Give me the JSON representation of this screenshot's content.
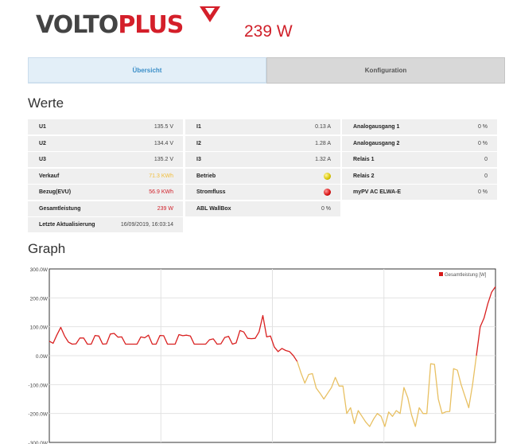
{
  "header": {
    "logo": {
      "part1": "VOLTO",
      "part2": "PLUS"
    },
    "power": "239 W"
  },
  "tabs": [
    {
      "label": "Übersicht",
      "active": true
    },
    {
      "label": "Konfiguration",
      "active": false
    }
  ],
  "werte": {
    "heading": "Werte",
    "col1": [
      {
        "label": "U1",
        "value": "135.5 V"
      },
      {
        "label": "U2",
        "value": "134.4 V"
      },
      {
        "label": "U3",
        "value": "135.2 V"
      },
      {
        "label": "Verkauf",
        "value": "71.3 KWh",
        "color": "#f1bd3a"
      },
      {
        "label": "Bezug(EVU)",
        "value": "56.9 KWh",
        "color": "#d0202a"
      },
      {
        "label": "Gesamtleistung",
        "value": "239 W",
        "color": "#d0202a"
      },
      {
        "label": "Letzte Aktualisierung",
        "value": "16/09/2019, 16:03:14"
      }
    ],
    "col2": [
      {
        "label": "I1",
        "value": "0.13 A"
      },
      {
        "label": "I2",
        "value": "1.28 A"
      },
      {
        "label": "I3",
        "value": "1.32 A"
      },
      {
        "label": "Betrieb",
        "indicator": "yellow"
      },
      {
        "label": "Stromfluss",
        "indicator": "red"
      },
      {
        "label": "ABL WallBox",
        "value": "0 %"
      }
    ],
    "col3": [
      {
        "label": "Analogausgang 1",
        "value": "0 %"
      },
      {
        "label": "Analogausgang 2",
        "value": "0 %"
      },
      {
        "label": "Relais 1",
        "value": "0"
      },
      {
        "label": "Relais 2",
        "value": "0"
      },
      {
        "label": "myPV AC ELWA-E",
        "value": "0 %"
      }
    ]
  },
  "graph": {
    "heading": "Graph"
  },
  "chart_data": {
    "type": "line",
    "title": "",
    "xlabel": "",
    "ylabel": "",
    "ylim": [
      -300,
      300
    ],
    "yticks": [
      "300.0W",
      "200.0W",
      "100.0W",
      "0.0W",
      "-100.0W",
      "-200.0W",
      "-300.0W"
    ],
    "grid": true,
    "legend": {
      "position": "top-right",
      "label": "Gesamtleistung [W]"
    },
    "colors": {
      "positive": "#d92020",
      "negative": "#e8c062"
    },
    "series": [
      {
        "name": "Gesamtleistung [W]",
        "values": [
          50,
          43,
          72,
          98,
          68,
          47,
          40,
          41,
          61,
          61,
          40,
          40,
          70,
          68,
          40,
          41,
          75,
          77,
          64,
          65,
          40,
          40,
          40,
          40,
          65,
          62,
          71,
          40,
          40,
          70,
          69,
          40,
          40,
          40,
          73,
          69,
          71,
          68,
          40,
          40,
          40,
          40,
          55,
          58,
          40,
          41,
          63,
          67,
          40,
          44,
          87,
          82,
          60,
          59,
          60,
          82,
          139,
          65,
          68,
          30,
          14,
          25,
          18,
          14,
          0,
          -20,
          -60,
          -95,
          -65,
          -62,
          -112,
          -130,
          -150,
          -130,
          -110,
          -75,
          -105,
          -105,
          -200,
          -180,
          -235,
          -190,
          -210,
          -230,
          -245,
          -220,
          -200,
          -210,
          -245,
          -195,
          -210,
          -190,
          -200,
          -110,
          -145,
          -205,
          -245,
          -180,
          -200,
          -200,
          -28,
          -30,
          -150,
          -200,
          -194,
          -193,
          -45,
          -50,
          -100,
          -140,
          -180,
          -100,
          0,
          100,
          130,
          180,
          220,
          239
        ]
      }
    ]
  }
}
